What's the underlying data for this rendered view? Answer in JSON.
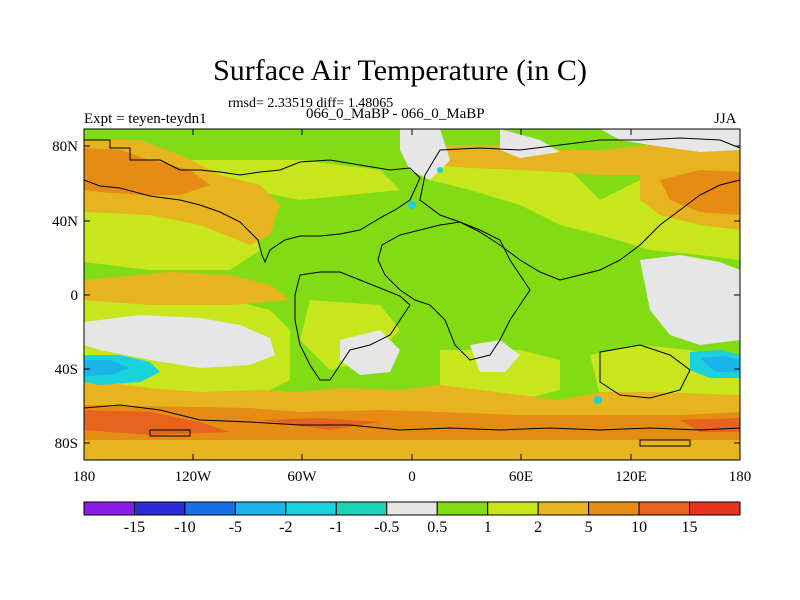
{
  "title": "Surface Air Temperature (in C)",
  "stats": "rmsd= 2.33519 diff= 1.48065",
  "experiment": "Expt = teyen-teydn1",
  "subtitle": "066_0_MaBP - 066_0_MaBP",
  "season": "JJA",
  "lat_ticks": [
    "80N",
    "40N",
    "0",
    "40S",
    "80S"
  ],
  "lon_ticks": [
    "180",
    "120W",
    "60W",
    "0",
    "60E",
    "120E",
    "180"
  ],
  "colorbar": {
    "labels": [
      "-15",
      "-10",
      "-5",
      "-2",
      "-1",
      "-0.5",
      "0.5",
      "1",
      "2",
      "5",
      "10",
      "15"
    ],
    "colors": [
      "#8a1ee6",
      "#2a2ad6",
      "#1a6ee6",
      "#1ab4ea",
      "#1ad2dc",
      "#1ad2b4",
      "#e6e6e6",
      "#82dc14",
      "#c8e61e",
      "#e6b41e",
      "#e68c14",
      "#e6641e",
      "#e6321e"
    ]
  },
  "colors": {
    "land_outline": "#000000",
    "neutral": "#e6e6e6",
    "light_green": "#82dc14",
    "yellow_green": "#c8e61e",
    "orange": "#e6b41e",
    "dark_orange": "#e68c14",
    "red_orange": "#e6641e",
    "cyan": "#1ad2dc",
    "light_blue": "#1ab4ea"
  }
}
